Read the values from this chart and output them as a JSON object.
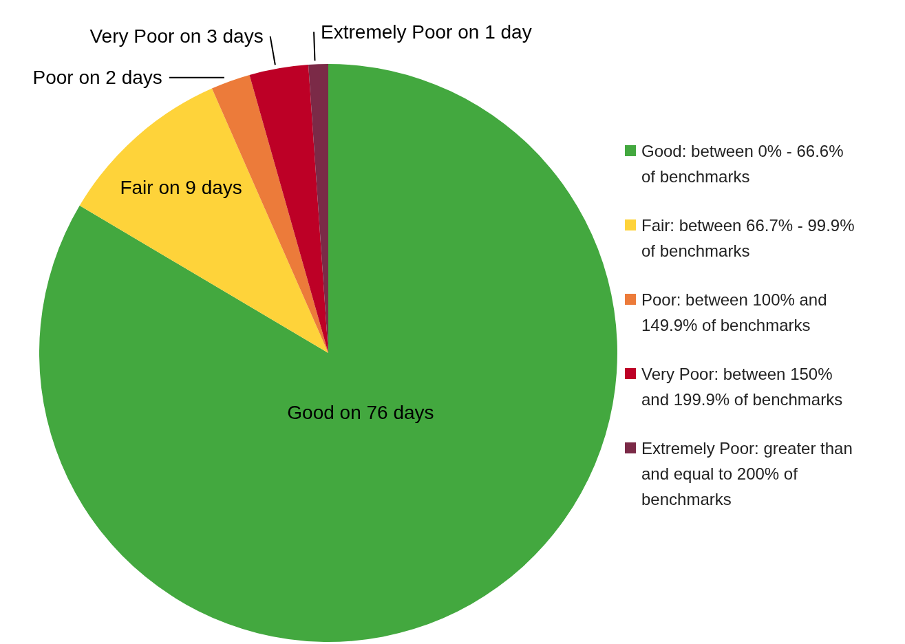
{
  "chart_data": {
    "type": "pie",
    "categories": [
      "Good: between 0% - 66.6% of benchmarks",
      "Fair: between 66.7% - 99.9% of benchmarks",
      "Poor: between 100% and 149.9% of benchmarks",
      "Very Poor: between 150% and 199.9% of benchmarks",
      "Extremely Poor: greater than and equal to 200% of benchmarks"
    ],
    "values": [
      76,
      9,
      2,
      3,
      1
    ],
    "colors": [
      "#43a83f",
      "#fed33a",
      "#ec7b3a",
      "#bd0026",
      "#7b2a47"
    ],
    "value_labels": [
      "Good on 76 days",
      "Fair on 9 days",
      "Poor on 2 days",
      "Very Poor on 3 days",
      "Extremely Poor on 1 day"
    ],
    "legend": "right"
  }
}
